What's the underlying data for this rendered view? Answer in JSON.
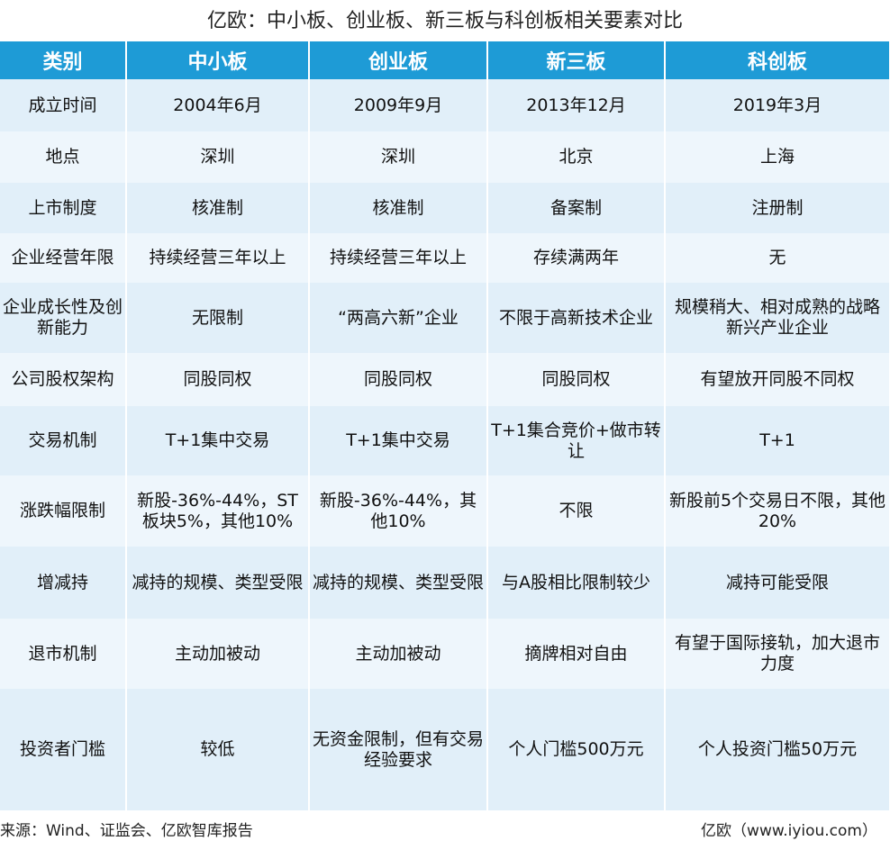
{
  "title": "亿欧：中小板、创业板、新三板与科创板相关要素对比",
  "header": [
    "类别",
    "中小板",
    "创业板",
    "新三板",
    "科创板"
  ],
  "colors": {
    "header": "#1e9bd6",
    "row_dark": "#e1eff9",
    "row_light": "#eef6fc"
  },
  "rows": [
    [
      "成立时间",
      "2004年6月",
      "2009年9月",
      "2013年12月",
      "2019年3月"
    ],
    [
      "地点",
      "深圳",
      "深圳",
      "北京",
      "上海"
    ],
    [
      "上市制度",
      "核准制",
      "核准制",
      "备案制",
      "注册制"
    ],
    [
      "企业经营年限",
      "持续经营三年以上",
      "持续经营三年以上",
      "存续满两年",
      "无"
    ],
    [
      "企业成长性及创新能力",
      "无限制",
      "“两高六新”企业",
      "不限于高新技术企业",
      "规模稍大、相对成熟的战略新兴产业企业"
    ],
    [
      "公司股权架构",
      "同股同权",
      "同股同权",
      "同股同权",
      "有望放开同股不同权"
    ],
    [
      "交易机制",
      "T+1集中交易",
      "T+1集中交易",
      "T+1集合竞价+做市转让",
      "T+1"
    ],
    [
      "涨跌幅限制",
      "新股-36%-44%，ST板块5%，其他10%",
      "新股-36%-44%，其他10%",
      "不限",
      "新股前5个交易日不限，其他20%"
    ],
    [
      "增减持",
      "减持的规模、类型受限",
      "减持的规模、类型受限",
      "与A股相比限制较少",
      "减持可能受限"
    ],
    [
      "退市机制",
      "主动加被动",
      "主动加被动",
      "摘牌相对自由",
      "有望于国际接轨，加大退市力度"
    ],
    [
      "投资者门槛",
      "较低",
      "无资金限制，但有交易经验要求",
      "个人门槛500万元",
      "个人投资门槛50万元"
    ]
  ],
  "footer": {
    "source": "来源：Wind、证监会、亿欧智库报告",
    "credit": "亿欧（www.iyiou.com）"
  }
}
